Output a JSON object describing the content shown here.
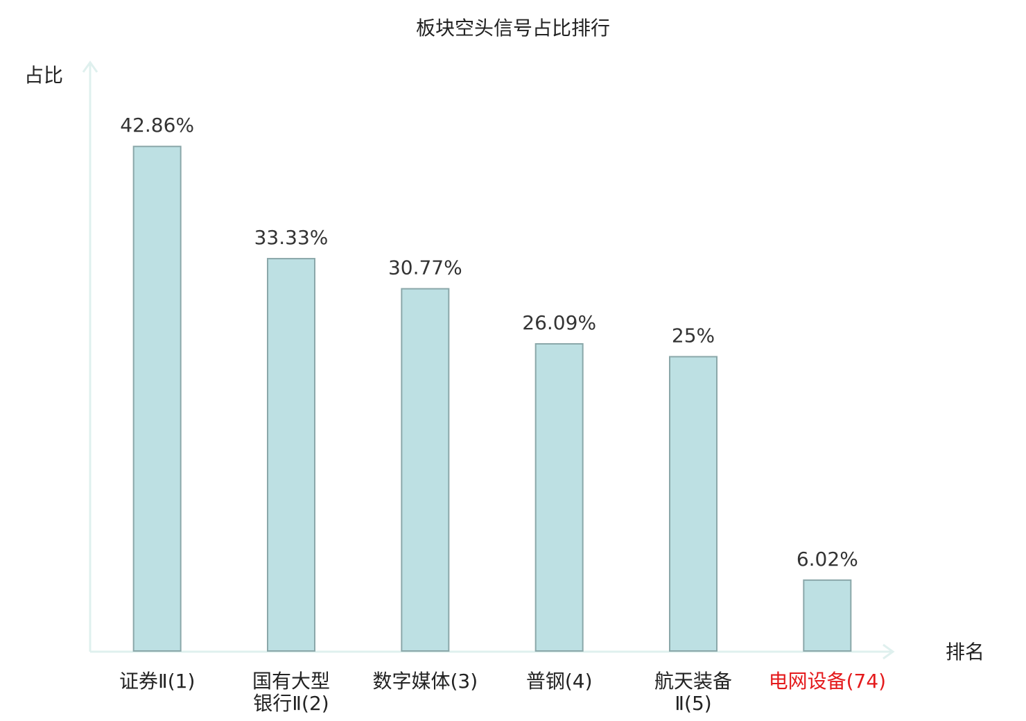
{
  "chart_data": {
    "type": "bar",
    "title": "板块空头信号占比排行",
    "y_label": "占比",
    "x_label": "排名",
    "categories": [
      [
        "证券Ⅱ(1)"
      ],
      [
        "国有大型",
        "银行Ⅱ(2)"
      ],
      [
        "数字媒体(3)"
      ],
      [
        "普钢(4)"
      ],
      [
        "航天装备",
        "Ⅱ(5)"
      ],
      [
        "电网设备(74)"
      ]
    ],
    "category_colors": [
      "#222222",
      "#222222",
      "#222222",
      "#222222",
      "#222222",
      "#e41a1c"
    ],
    "values": [
      42.86,
      33.33,
      30.77,
      26.09,
      25,
      6.02
    ],
    "value_labels": [
      "42.86%",
      "33.33%",
      "30.77%",
      "26.09%",
      "25%",
      "6.02%"
    ],
    "color": "#bde0e3",
    "edge_color": "#8aa7a9",
    "ylim": [
      0,
      50
    ],
    "grid": false
  }
}
